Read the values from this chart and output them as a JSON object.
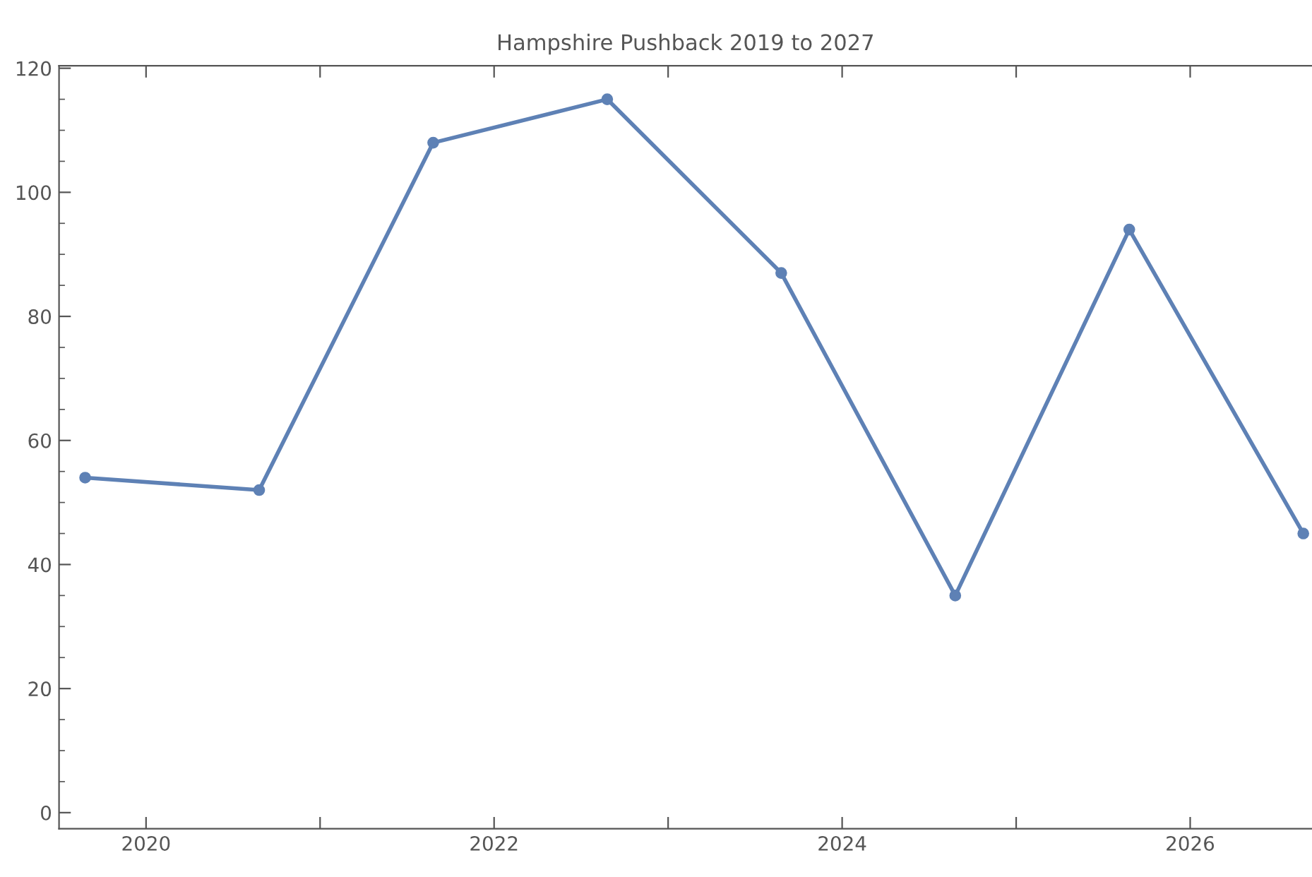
{
  "chart_data": {
    "type": "line",
    "title": "Hampshire Pushback 2019 to 2027",
    "x": [
      2019.65,
      2020.65,
      2021.65,
      2022.65,
      2023.65,
      2024.65,
      2025.65,
      2026.65
    ],
    "series": [
      {
        "color": "#5e81b5",
        "values": [
          54,
          52,
          108,
          115,
          87,
          35,
          94,
          45
        ]
      }
    ],
    "xlim": [
      2019.5,
      2026.7
    ],
    "xticks": [
      2020,
      {
        "value": 2021,
        "label": null
      },
      2022,
      {
        "value": 2023,
        "label": null
      },
      2024,
      {
        "value": 2025,
        "label": null
      },
      2026
    ],
    "ylim": [
      -2.6,
      120.4
    ],
    "yticks": [
      0,
      20,
      40,
      60,
      80,
      100,
      120
    ],
    "marker": "circle",
    "line_style": "solid",
    "grid": false,
    "legend": false
  }
}
